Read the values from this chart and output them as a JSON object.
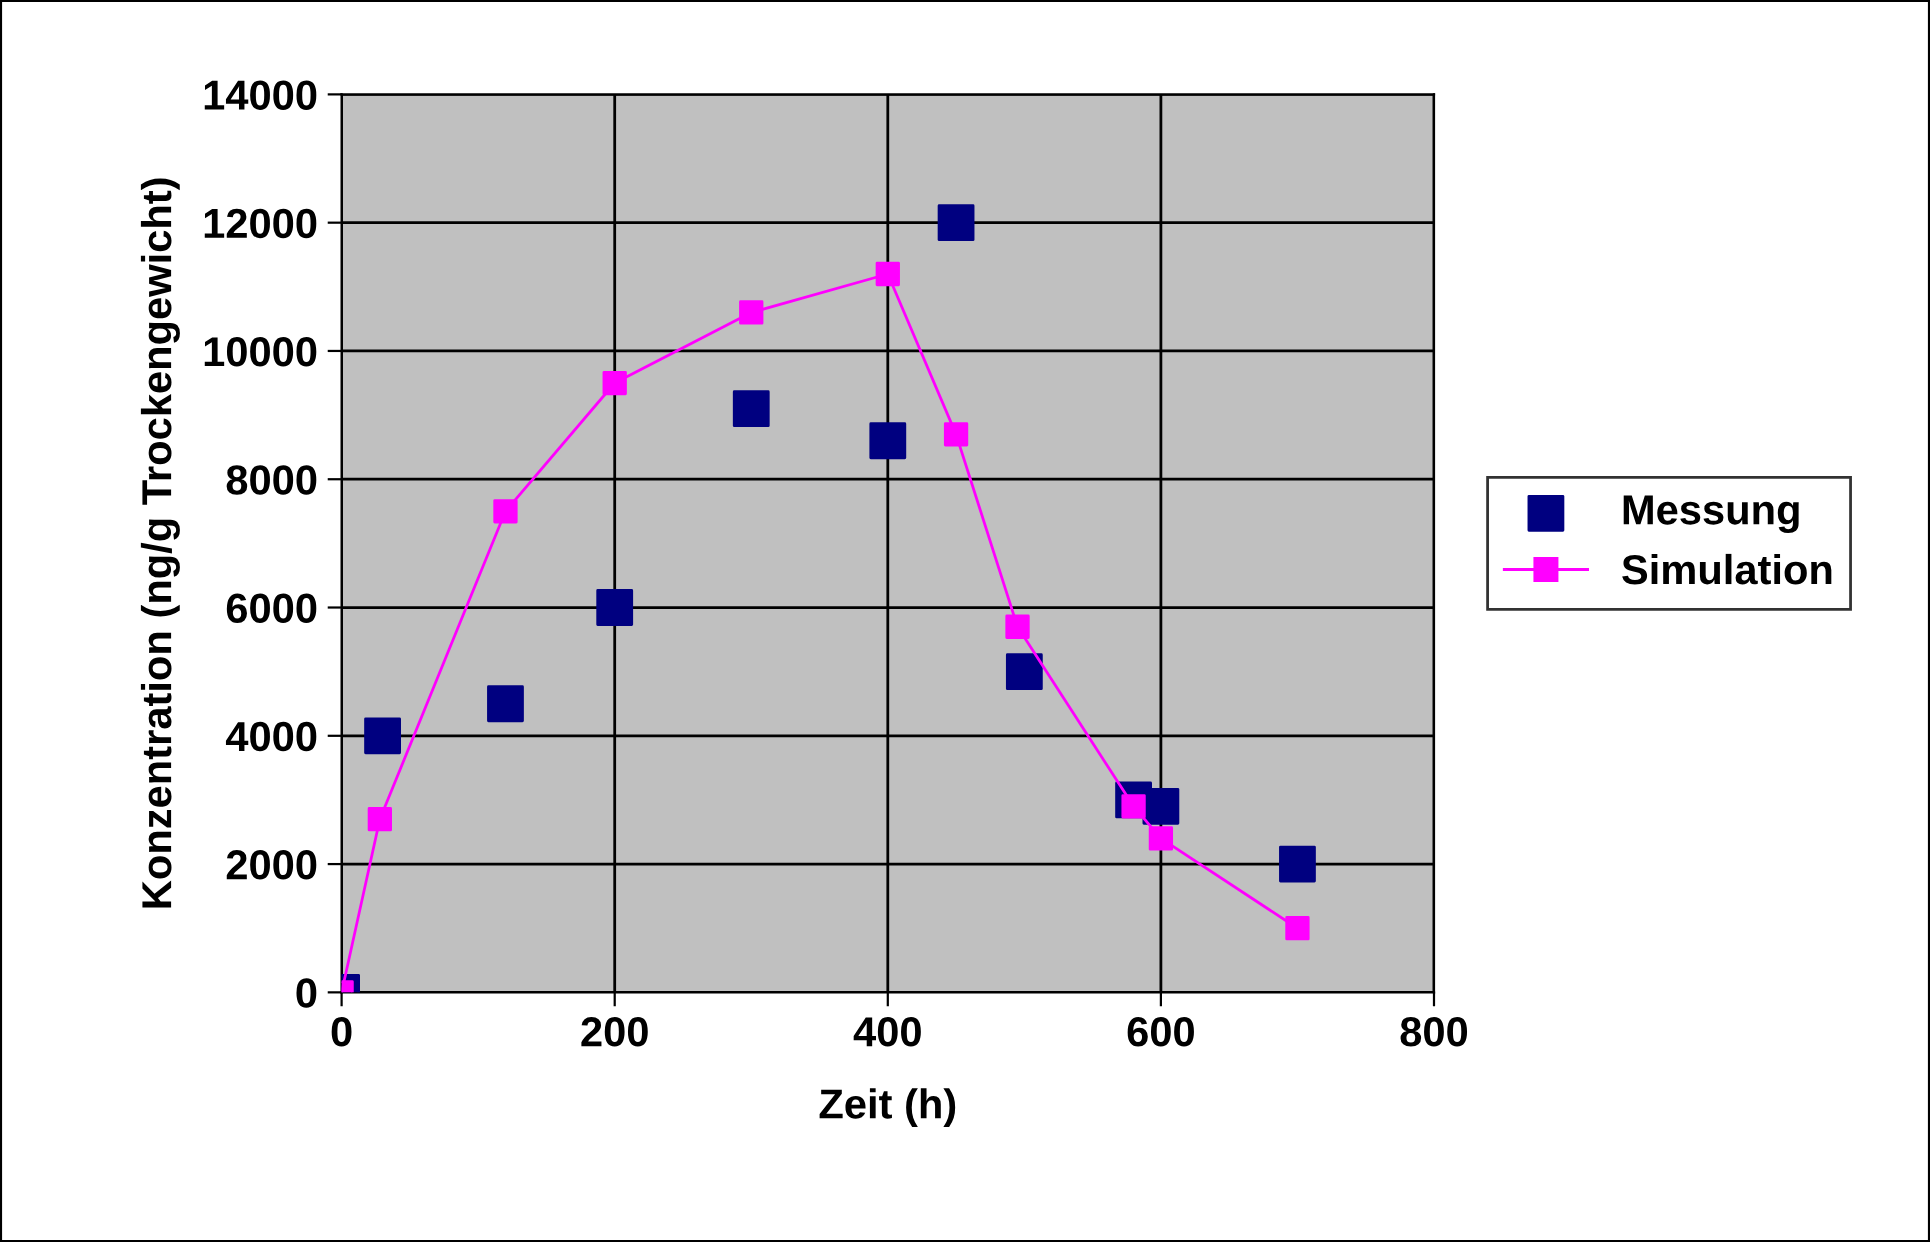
{
  "chart_data": {
    "type": "scatter",
    "xlabel": "Zeit (h)",
    "ylabel": "Konzentration (ng/g Trockengewicht)",
    "xlim": [
      0,
      800
    ],
    "xticks": [
      0,
      200,
      400,
      600,
      800
    ],
    "ylim": [
      0,
      14000
    ],
    "yticks": [
      0,
      2000,
      4000,
      6000,
      8000,
      10000,
      12000,
      14000
    ],
    "grid": true,
    "legend": "right",
    "series": [
      {
        "name": "Messung",
        "marker": "square",
        "color": "#000080",
        "x": [
          0,
          30,
          120,
          200,
          300,
          400,
          450,
          500,
          580,
          600,
          700
        ],
        "values": [
          0,
          4000,
          4500,
          6000,
          9100,
          8600,
          12000,
          5000,
          3000,
          2900,
          2000
        ]
      },
      {
        "name": "Simulation",
        "type": "line",
        "marker": "square",
        "color": "#ff00ff",
        "x": [
          0,
          28,
          120,
          200,
          300,
          400,
          450,
          495,
          580,
          600,
          700
        ],
        "values": [
          0,
          2700,
          7500,
          9500,
          10600,
          11200,
          8700,
          5700,
          2900,
          2400,
          1000
        ]
      }
    ]
  }
}
